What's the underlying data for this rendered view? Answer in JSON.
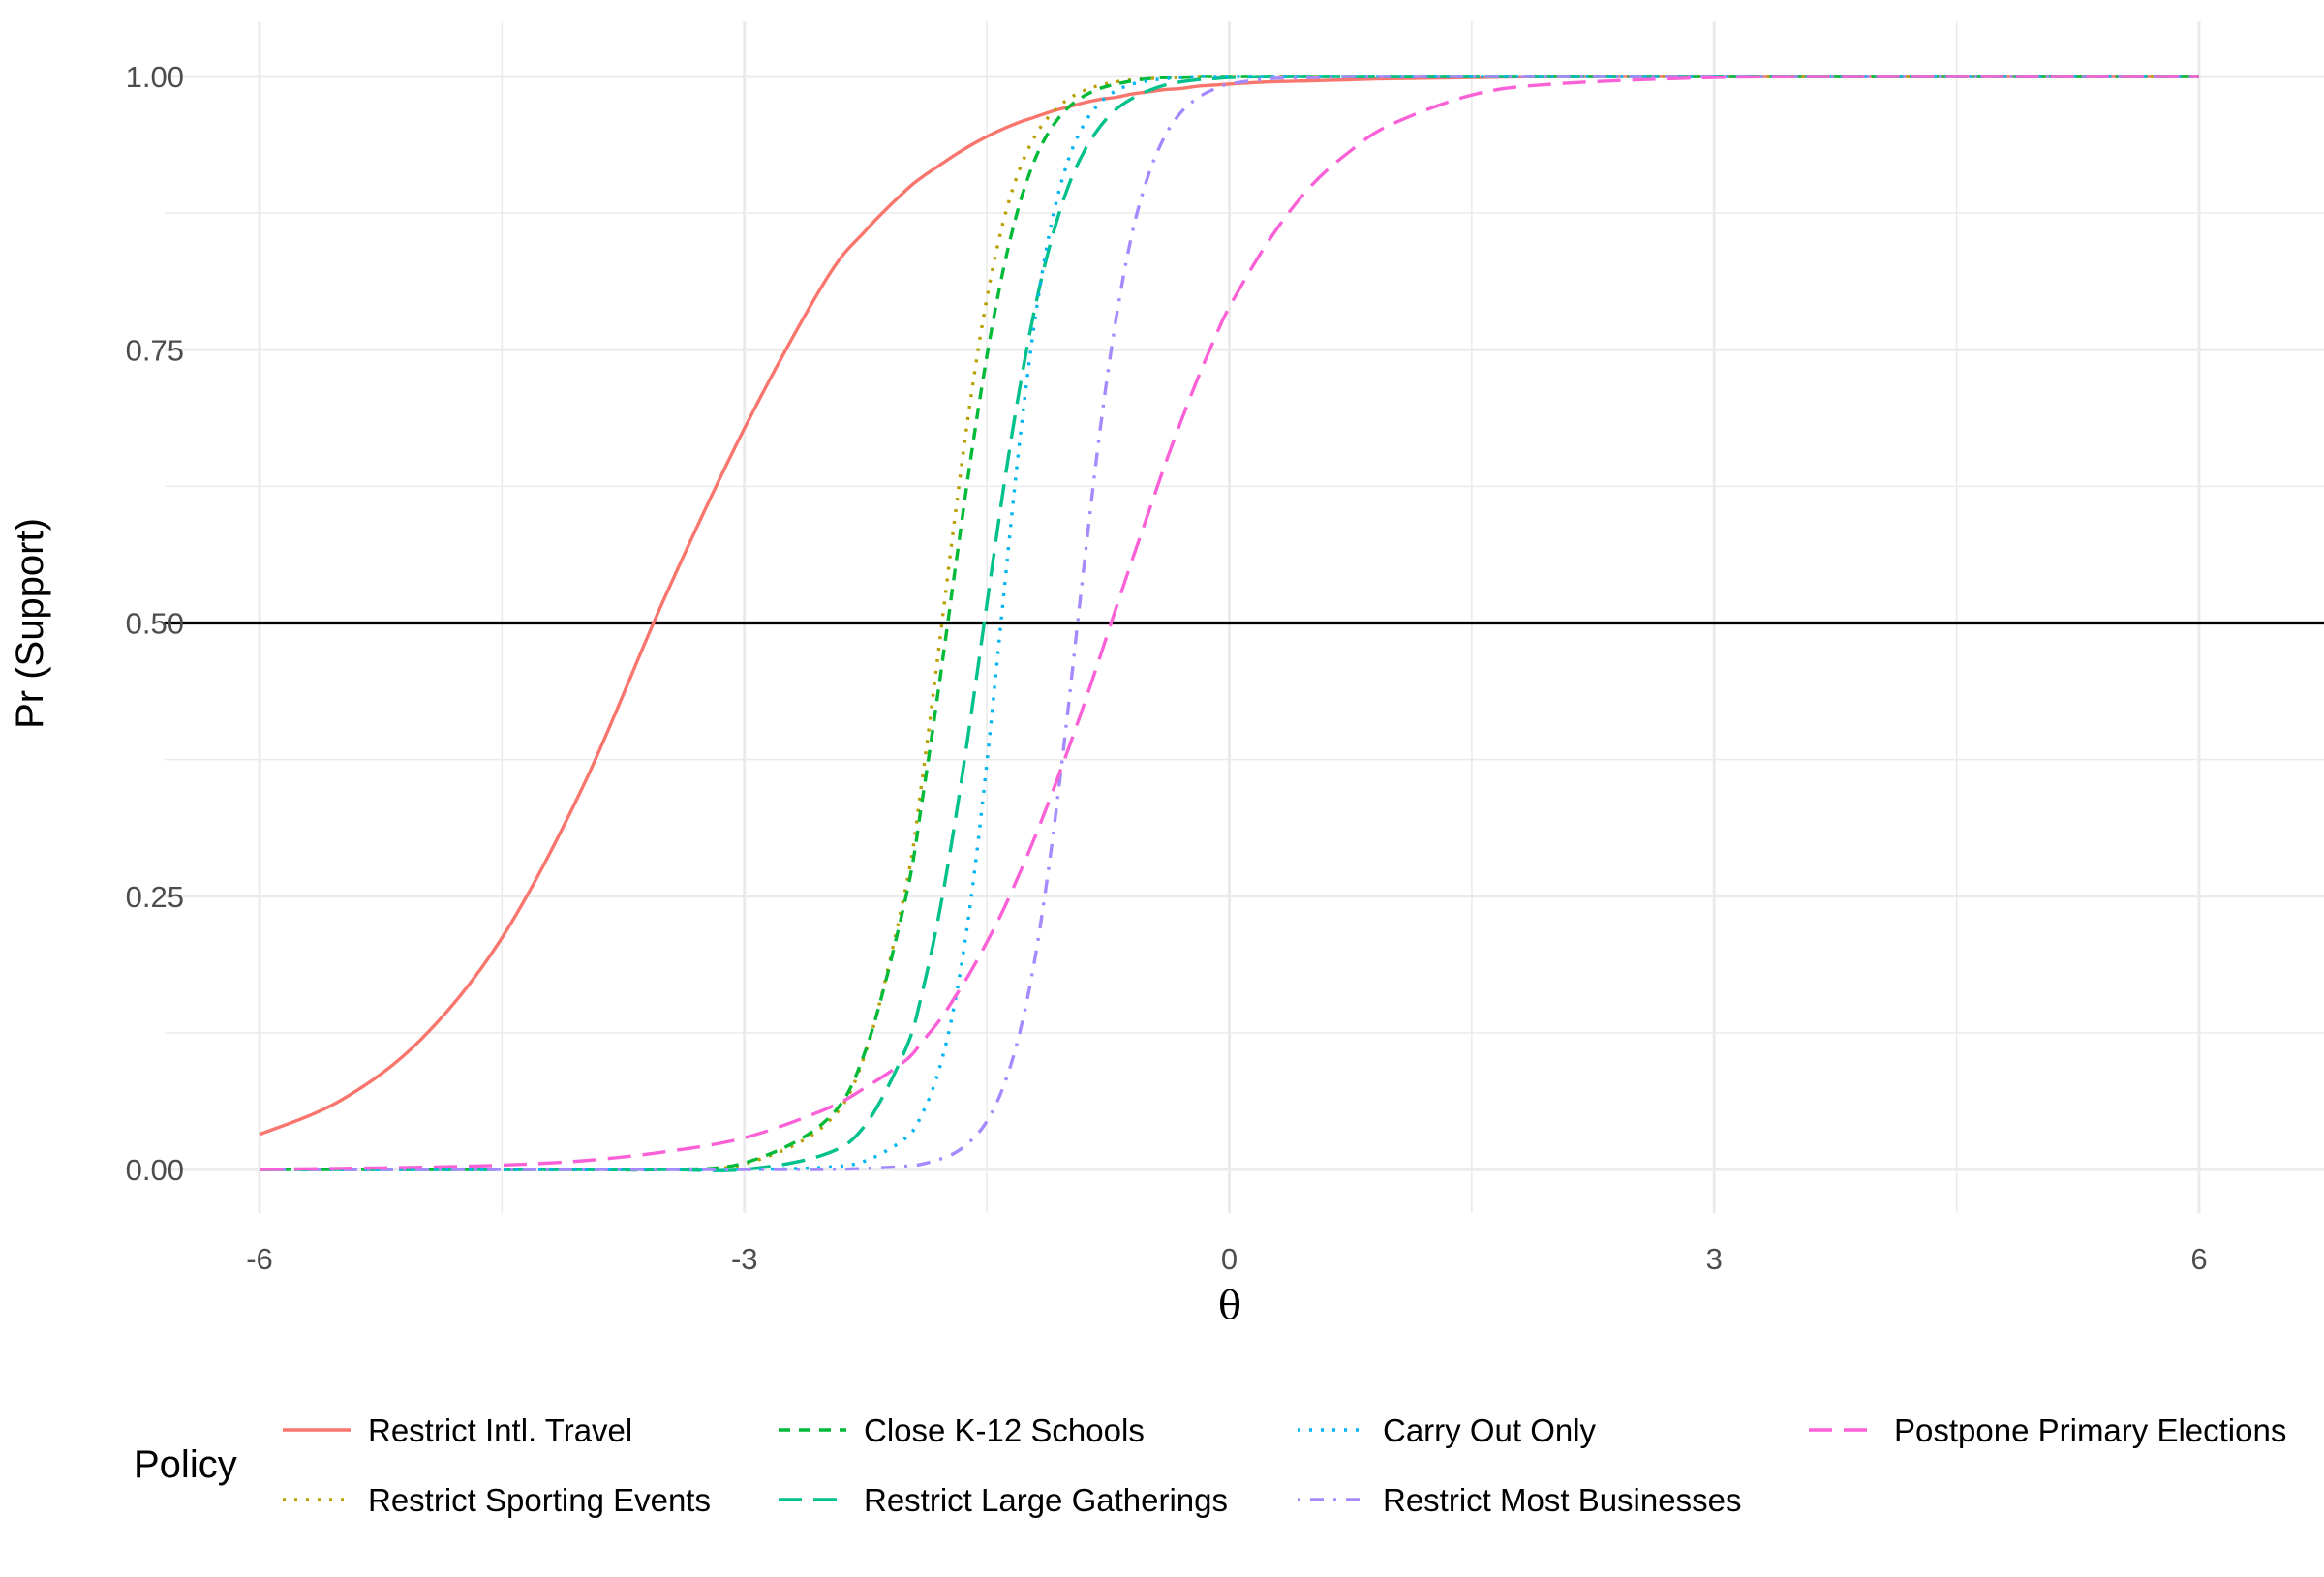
{
  "chart_data": {
    "type": "line",
    "title": "",
    "xlabel": "θ",
    "ylabel": "Pr (Support)",
    "xlim": [
      -6.5,
      6.6
    ],
    "ylim": [
      -0.05,
      1.05
    ],
    "x_ticks": [
      -6,
      -3,
      0,
      3,
      6
    ],
    "x_tick_labels": [
      "-6",
      "-3",
      "0",
      "3",
      "6"
    ],
    "y_ticks": [
      0,
      0.25,
      0.5,
      0.75,
      1.0
    ],
    "y_tick_labels": [
      "0.00",
      "0.25",
      "0.50",
      "0.75",
      "1.00"
    ],
    "grid": true,
    "reference_line": {
      "y": 0.5,
      "color": "#000000"
    },
    "legend": {
      "title": "Policy",
      "position": "bottom"
    },
    "x": [
      -6,
      -5.5,
      -5,
      -4.5,
      -4,
      -3.5,
      -3,
      -2.5,
      -2.25,
      -2,
      -1.9,
      -1.8,
      -1.7,
      -1.6,
      -1.5,
      -1.4,
      -1.3,
      -1.2,
      -1.1,
      -1,
      -0.9,
      -0.8,
      -0.7,
      -0.6,
      -0.5,
      -0.4,
      -0.3,
      -0.2,
      -0.1,
      0,
      0.25,
      0.5,
      0.75,
      1,
      1.5,
      2,
      3,
      4,
      5,
      6
    ],
    "series": [
      {
        "name": "Restrict Intl. Travel",
        "color": "#F8766D",
        "dash": "solid",
        "values": [
          0.032,
          0.063,
          0.119,
          0.212,
          0.35,
          0.521,
          0.678,
          0.813,
          0.859,
          0.896,
          0.908,
          0.918,
          0.928,
          0.937,
          0.945,
          0.952,
          0.958,
          0.963,
          0.968,
          0.972,
          0.976,
          0.979,
          0.981,
          0.984,
          0.986,
          0.988,
          0.989,
          0.991,
          0.992,
          0.993,
          0.995,
          0.996,
          0.997,
          0.998,
          0.999,
          1.0,
          1.0,
          1.0,
          1.0,
          1.0
        ]
      },
      {
        "name": "Restrict Sporting Events",
        "color": "#B79F00",
        "dash": "dotted",
        "values": [
          0.0,
          0.0,
          0.0,
          0.0,
          0.0,
          0.0,
          0.005,
          0.041,
          0.107,
          0.259,
          0.357,
          0.473,
          0.594,
          0.705,
          0.797,
          0.866,
          0.914,
          0.946,
          0.966,
          0.979,
          0.987,
          0.992,
          0.995,
          0.997,
          0.998,
          0.999,
          0.999,
          1.0,
          1.0,
          1.0,
          1.0,
          1.0,
          1.0,
          1.0,
          1.0,
          1.0,
          1.0,
          1.0,
          1.0,
          1.0
        ]
      },
      {
        "name": "Close K-12 Schools",
        "color": "#00BA38",
        "dash": "dashed",
        "values": [
          0.0,
          0.0,
          0.0,
          0.0,
          0.0,
          0.0,
          0.006,
          0.044,
          0.109,
          0.25,
          0.338,
          0.438,
          0.545,
          0.65,
          0.744,
          0.822,
          0.882,
          0.925,
          0.953,
          0.971,
          0.982,
          0.989,
          0.993,
          0.996,
          0.998,
          0.999,
          0.999,
          1.0,
          1.0,
          1.0,
          1.0,
          1.0,
          1.0,
          1.0,
          1.0,
          1.0,
          1.0,
          1.0,
          1.0,
          1.0
        ]
      },
      {
        "name": "Restrict Large Gatherings",
        "color": "#00C08B",
        "dash": "longdash",
        "values": [
          0.0,
          0.0,
          0.0,
          0.0,
          0.0,
          0.0,
          0.0,
          0.014,
          0.041,
          0.111,
          0.162,
          0.23,
          0.315,
          0.413,
          0.517,
          0.62,
          0.712,
          0.79,
          0.851,
          0.898,
          0.931,
          0.954,
          0.97,
          0.98,
          0.987,
          0.992,
          0.995,
          0.997,
          0.998,
          0.999,
          1.0,
          1.0,
          1.0,
          1.0,
          1.0,
          1.0,
          1.0,
          1.0,
          1.0,
          1.0
        ]
      },
      {
        "name": "Carry Out Only",
        "color": "#00B4F0",
        "dash": "dotted",
        "values": [
          0.0,
          0.0,
          0.0,
          0.0,
          0.0,
          0.0,
          0.0,
          0.002,
          0.008,
          0.029,
          0.051,
          0.089,
          0.151,
          0.245,
          0.372,
          0.519,
          0.662,
          0.78,
          0.866,
          0.922,
          0.956,
          0.976,
          0.987,
          0.993,
          0.996,
          0.998,
          0.999,
          1.0,
          1.0,
          1.0,
          1.0,
          1.0,
          1.0,
          1.0,
          1.0,
          1.0,
          1.0,
          1.0,
          1.0,
          1.0
        ]
      },
      {
        "name": "Restrict Most Businesses",
        "color": "#A58AFF",
        "dash": "dotdash",
        "values": [
          0.0,
          0.0,
          0.0,
          0.0,
          0.0,
          0.0,
          0.0,
          0.0,
          0.001,
          0.003,
          0.005,
          0.009,
          0.015,
          0.026,
          0.044,
          0.075,
          0.123,
          0.195,
          0.295,
          0.418,
          0.551,
          0.676,
          0.779,
          0.857,
          0.91,
          0.945,
          0.967,
          0.98,
          0.988,
          0.993,
          0.998,
          0.999,
          1.0,
          1.0,
          1.0,
          1.0,
          1.0,
          1.0,
          1.0,
          1.0
        ]
      },
      {
        "name": "Postpone Primary Elections",
        "color": "#FB61D7",
        "dash": "longdash",
        "values": [
          0.0,
          0.001,
          0.002,
          0.004,
          0.008,
          0.016,
          0.029,
          0.055,
          0.075,
          0.1,
          0.117,
          0.135,
          0.157,
          0.181,
          0.208,
          0.237,
          0.27,
          0.305,
          0.343,
          0.383,
          0.425,
          0.469,
          0.514,
          0.558,
          0.601,
          0.644,
          0.684,
          0.722,
          0.757,
          0.789,
          0.851,
          0.899,
          0.932,
          0.956,
          0.983,
          0.993,
          0.999,
          1.0,
          1.0,
          1.0
        ]
      }
    ],
    "legend_rows": [
      [
        "Restrict Intl. Travel",
        "Close K-12 Schools",
        "Carry Out Only",
        "Postpone Primary Elections"
      ],
      [
        "Restrict Sporting Events",
        "Restrict Large Gatherings",
        "Restrict Most Businesses"
      ]
    ]
  }
}
